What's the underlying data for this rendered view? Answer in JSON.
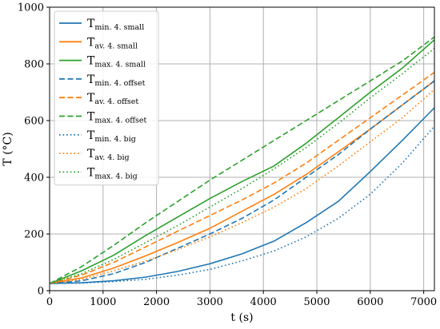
{
  "chart_data": {
    "type": "line",
    "title": "",
    "xlabel": "t (s)",
    "ylabel": "T (°C)",
    "xlim": [
      0,
      7200
    ],
    "ylim": [
      0,
      1000
    ],
    "xticks": [
      0,
      1000,
      2000,
      3000,
      4000,
      5000,
      6000,
      7000
    ],
    "yticks": [
      0,
      200,
      400,
      600,
      800,
      1000
    ],
    "grid": true,
    "legend_position": "upper-left",
    "x": [
      0,
      600,
      1200,
      1800,
      2400,
      3000,
      3600,
      4200,
      4800,
      5400,
      6000,
      6600,
      7200
    ],
    "series": [
      {
        "name_main": "T",
        "name_sub": "min. 4. small",
        "color": "#1f77b4",
        "style": "solid",
        "values": [
          25,
          28,
          35,
          48,
          68,
          95,
          130,
          175,
          240,
          315,
          420,
          530,
          645
        ]
      },
      {
        "name_main": "T",
        "name_sub": "av. 4. small",
        "color": "#ff7f0e",
        "style": "solid",
        "values": [
          25,
          45,
          80,
          123,
          170,
          220,
          280,
          340,
          410,
          490,
          570,
          655,
          740
        ]
      },
      {
        "name_main": "T",
        "name_sub": "max. 4. small",
        "color": "#2ca02c",
        "style": "solid",
        "values": [
          25,
          70,
          125,
          195,
          260,
          325,
          385,
          440,
          520,
          610,
          700,
          785,
          885
        ]
      },
      {
        "name_main": "T",
        "name_sub": "min. 4. offset",
        "color": "#1f77b4",
        "style": "dashed",
        "values": [
          25,
          35,
          60,
          100,
          150,
          200,
          255,
          320,
          400,
          480,
          570,
          655,
          740
        ]
      },
      {
        "name_main": "T",
        "name_sub": "av. 4. offset",
        "color": "#ff7f0e",
        "style": "dashed",
        "values": [
          25,
          55,
          100,
          155,
          210,
          265,
          320,
          380,
          450,
          530,
          610,
          690,
          770
        ]
      },
      {
        "name_main": "T",
        "name_sub": "max. 4. offset",
        "color": "#2ca02c",
        "style": "dashed",
        "values": [
          25,
          85,
          160,
          240,
          315,
          390,
          460,
          530,
          600,
          670,
          740,
          810,
          895
        ]
      },
      {
        "name_main": "T",
        "name_sub": "min. 4. big",
        "color": "#1f77b4",
        "style": "dotted",
        "values": [
          25,
          27,
          32,
          40,
          55,
          75,
          105,
          140,
          190,
          255,
          340,
          450,
          580
        ]
      },
      {
        "name_main": "T",
        "name_sub": "av. 4. big",
        "color": "#ff7f0e",
        "style": "dotted",
        "values": [
          25,
          40,
          70,
          105,
          145,
          190,
          240,
          295,
          360,
          440,
          525,
          610,
          710
        ]
      },
      {
        "name_main": "T",
        "name_sub": "max. 4. big",
        "color": "#2ca02c",
        "style": "dotted",
        "values": [
          25,
          60,
          110,
          170,
          230,
          295,
          360,
          430,
          505,
          590,
          680,
          765,
          855
        ]
      }
    ]
  }
}
